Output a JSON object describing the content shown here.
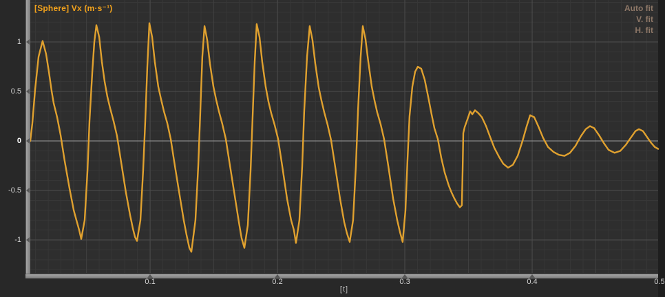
{
  "header": {
    "series_label": "[Sphere] Vx (m·s⁻¹)"
  },
  "fit_menu": {
    "items": [
      "Auto fit",
      "V. fit",
      "H. fit"
    ]
  },
  "colors": {
    "outer_bg": "#282828",
    "plot_bg": "#2e2e2e",
    "grid_minor": "#373737",
    "grid_mid": "#404040",
    "grid_major": "#4d4d4d",
    "zero_line": "#9c9c9c",
    "curve": "#e0a12f",
    "title_text": "#f2a21c",
    "fit_text": "#8d7767",
    "tick_text": "#d2d2d2",
    "strip": "#8f8f8f"
  },
  "chart_data": {
    "type": "line",
    "title": "[Sphere] Vx (m·s⁻¹)",
    "xlabel": "[t]",
    "ylabel": "Vx (m·s⁻¹)",
    "legend": null,
    "grid": "on",
    "xlim": [
      0.0059,
      0.4989
    ],
    "ylim": [
      -1.333,
      1.424
    ],
    "x_ticks": [
      0.1,
      0.2,
      0.3,
      0.4,
      0.5
    ],
    "x_tick_labels": [
      "0.1",
      "0.2",
      "0.3",
      "0.4",
      "0.5"
    ],
    "y_ticks": [
      1,
      0.5,
      0,
      -0.5,
      -1
    ],
    "y_tick_labels": [
      "1",
      "0.5",
      "0",
      "-0.5",
      "-1"
    ],
    "x_minor_step": 0.01,
    "x_mid_step": 0.05,
    "x_major_step": 0.1,
    "y_minor_step": 0.1,
    "y_major_step": 0.5,
    "series": [
      {
        "name": "[Sphere] Vx",
        "color": "#e0a12f",
        "points": [
          [
            0.0059,
            0
          ],
          [
            0.0075,
            0.18
          ],
          [
            0.0097,
            0.52
          ],
          [
            0.0124,
            0.85
          ],
          [
            0.0156,
            1.01
          ],
          [
            0.0183,
            0.88
          ],
          [
            0.0205,
            0.7
          ],
          [
            0.0227,
            0.5
          ],
          [
            0.0243,
            0.38
          ],
          [
            0.027,
            0.24
          ],
          [
            0.0297,
            0.06
          ],
          [
            0.0329,
            -0.2
          ],
          [
            0.0367,
            -0.48
          ],
          [
            0.04,
            -0.7
          ],
          [
            0.0421,
            -0.8
          ],
          [
            0.0443,
            -0.9
          ],
          [
            0.0459,
            -0.99
          ],
          [
            0.0486,
            -0.8
          ],
          [
            0.0508,
            -0.3
          ],
          [
            0.0524,
            0.2
          ],
          [
            0.0546,
            0.7
          ],
          [
            0.0562,
            1
          ],
          [
            0.0578,
            1.17
          ],
          [
            0.06,
            1.05
          ],
          [
            0.0621,
            0.8
          ],
          [
            0.0643,
            0.6
          ],
          [
            0.0664,
            0.45
          ],
          [
            0.0686,
            0.33
          ],
          [
            0.0713,
            0.2
          ],
          [
            0.074,
            0.05
          ],
          [
            0.0773,
            -0.22
          ],
          [
            0.081,
            -0.52
          ],
          [
            0.0843,
            -0.75
          ],
          [
            0.0864,
            -0.88
          ],
          [
            0.0881,
            -0.97
          ],
          [
            0.0897,
            -1.01
          ],
          [
            0.0924,
            -0.8
          ],
          [
            0.0945,
            -0.3
          ],
          [
            0.0962,
            0.2
          ],
          [
            0.0978,
            0.75
          ],
          [
            0.0994,
            1.19
          ],
          [
            0.1016,
            1.05
          ],
          [
            0.1037,
            0.8
          ],
          [
            0.1064,
            0.55
          ],
          [
            0.1086,
            0.42
          ],
          [
            0.1108,
            0.3
          ],
          [
            0.1135,
            0.18
          ],
          [
            0.1162,
            0.02
          ],
          [
            0.1194,
            -0.25
          ],
          [
            0.1232,
            -0.55
          ],
          [
            0.1264,
            -0.8
          ],
          [
            0.1286,
            -0.95
          ],
          [
            0.1308,
            -1.08
          ],
          [
            0.1324,
            -1.12
          ],
          [
            0.1356,
            -0.8
          ],
          [
            0.1378,
            -0.25
          ],
          [
            0.1394,
            0.3
          ],
          [
            0.141,
            0.85
          ],
          [
            0.1427,
            1.16
          ],
          [
            0.1448,
            1.02
          ],
          [
            0.147,
            0.78
          ],
          [
            0.1497,
            0.55
          ],
          [
            0.1518,
            0.42
          ],
          [
            0.154,
            0.3
          ],
          [
            0.1567,
            0.17
          ],
          [
            0.1594,
            0.02
          ],
          [
            0.1627,
            -0.25
          ],
          [
            0.1664,
            -0.55
          ],
          [
            0.1697,
            -0.82
          ],
          [
            0.1718,
            -0.98
          ],
          [
            0.174,
            -1.08
          ],
          [
            0.1767,
            -0.85
          ],
          [
            0.1789,
            -0.3
          ],
          [
            0.1805,
            0.25
          ],
          [
            0.1821,
            0.8
          ],
          [
            0.1837,
            1.18
          ],
          [
            0.1859,
            1.05
          ],
          [
            0.188,
            0.8
          ],
          [
            0.1907,
            0.55
          ],
          [
            0.1929,
            0.4
          ],
          [
            0.1951,
            0.28
          ],
          [
            0.1978,
            0.16
          ],
          [
            0.2005,
            0.02
          ],
          [
            0.2037,
            -0.25
          ],
          [
            0.2075,
            -0.58
          ],
          [
            0.2107,
            -0.8
          ],
          [
            0.2129,
            -0.9
          ],
          [
            0.2145,
            -1.03
          ],
          [
            0.2172,
            -0.8
          ],
          [
            0.2194,
            -0.25
          ],
          [
            0.221,
            0.3
          ],
          [
            0.2232,
            0.85
          ],
          [
            0.2253,
            1.16
          ],
          [
            0.2275,
            1.02
          ],
          [
            0.2297,
            0.78
          ],
          [
            0.2324,
            0.54
          ],
          [
            0.2345,
            0.41
          ],
          [
            0.2367,
            0.29
          ],
          [
            0.2394,
            0.16
          ],
          [
            0.2421,
            0.01
          ],
          [
            0.2453,
            -0.26
          ],
          [
            0.2491,
            -0.58
          ],
          [
            0.2524,
            -0.82
          ],
          [
            0.2545,
            -0.93
          ],
          [
            0.2567,
            -1.02
          ],
          [
            0.2594,
            -0.8
          ],
          [
            0.2616,
            -0.25
          ],
          [
            0.2632,
            0.3
          ],
          [
            0.2653,
            0.85
          ],
          [
            0.267,
            1.16
          ],
          [
            0.2691,
            1.03
          ],
          [
            0.2713,
            0.8
          ],
          [
            0.274,
            0.55
          ],
          [
            0.2762,
            0.41
          ],
          [
            0.2783,
            0.29
          ],
          [
            0.281,
            0.17
          ],
          [
            0.2837,
            0.02
          ],
          [
            0.287,
            -0.25
          ],
          [
            0.2908,
            -0.58
          ],
          [
            0.294,
            -0.8
          ],
          [
            0.2962,
            -0.92
          ],
          [
            0.2983,
            -1.02
          ],
          [
            0.3005,
            -0.7
          ],
          [
            0.3021,
            -0.2
          ],
          [
            0.3037,
            0.25
          ],
          [
            0.3059,
            0.55
          ],
          [
            0.3081,
            0.7
          ],
          [
            0.3102,
            0.75
          ],
          [
            0.3129,
            0.73
          ],
          [
            0.3156,
            0.62
          ],
          [
            0.3183,
            0.45
          ],
          [
            0.321,
            0.27
          ],
          [
            0.3232,
            0.13
          ],
          [
            0.3259,
            0.02
          ],
          [
            0.3286,
            -0.17
          ],
          [
            0.3313,
            -0.32
          ],
          [
            0.3345,
            -0.45
          ],
          [
            0.3367,
            -0.52
          ],
          [
            0.3389,
            -0.58
          ],
          [
            0.341,
            -0.63
          ],
          [
            0.3432,
            -0.67
          ],
          [
            0.3448,
            -0.65
          ],
          [
            0.3454,
            -0.3
          ],
          [
            0.3459,
            0.08
          ],
          [
            0.347,
            0.14
          ],
          [
            0.3492,
            0.22
          ],
          [
            0.3513,
            0.3
          ],
          [
            0.353,
            0.27
          ],
          [
            0.3551,
            0.31
          ],
          [
            0.3578,
            0.28
          ],
          [
            0.3605,
            0.24
          ],
          [
            0.3638,
            0.15
          ],
          [
            0.367,
            0.04
          ],
          [
            0.3703,
            -0.07
          ],
          [
            0.374,
            -0.16
          ],
          [
            0.3773,
            -0.23
          ],
          [
            0.3811,
            -0.27
          ],
          [
            0.3849,
            -0.24
          ],
          [
            0.3886,
            -0.15
          ],
          [
            0.3924,
            0
          ],
          [
            0.3957,
            0.15
          ],
          [
            0.3984,
            0.26
          ],
          [
            0.4016,
            0.24
          ],
          [
            0.4048,
            0.15
          ],
          [
            0.4086,
            0.03
          ],
          [
            0.4124,
            -0.06
          ],
          [
            0.4167,
            -0.11
          ],
          [
            0.421,
            -0.14
          ],
          [
            0.4254,
            -0.15
          ],
          [
            0.4297,
            -0.12
          ],
          [
            0.434,
            -0.05
          ],
          [
            0.4383,
            0.05
          ],
          [
            0.4421,
            0.12
          ],
          [
            0.4454,
            0.15
          ],
          [
            0.4486,
            0.13
          ],
          [
            0.4524,
            0.06
          ],
          [
            0.4562,
            -0.02
          ],
          [
            0.46,
            -0.09
          ],
          [
            0.4648,
            -0.12
          ],
          [
            0.4692,
            -0.1
          ],
          [
            0.4735,
            -0.04
          ],
          [
            0.4778,
            0.04
          ],
          [
            0.4811,
            0.1
          ],
          [
            0.4838,
            0.12
          ],
          [
            0.487,
            0.1
          ],
          [
            0.4902,
            0.04
          ],
          [
            0.4935,
            -0.02
          ],
          [
            0.4962,
            -0.06
          ],
          [
            0.4989,
            -0.08
          ]
        ]
      }
    ]
  }
}
